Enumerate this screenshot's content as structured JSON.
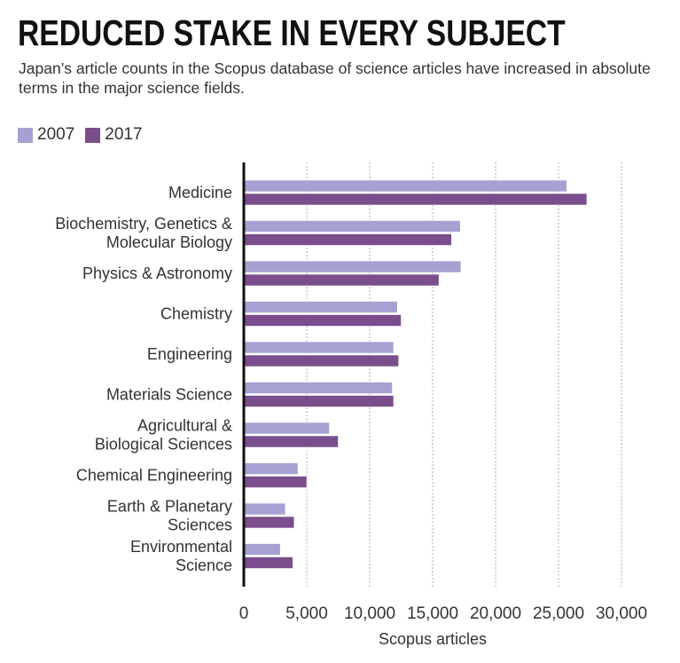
{
  "chart_data": {
    "type": "bar",
    "orientation": "horizontal",
    "title": "REDUCED STAKE IN EVERY SUBJECT",
    "subtitle": "Japan’s article counts in the Scopus database of science articles have increased in absolute terms in the major science fields.",
    "categories": [
      [
        "Medicine"
      ],
      [
        "Biochemistry, Genetics &",
        "Molecular Biology"
      ],
      [
        "Physics & Astronomy"
      ],
      [
        "Chemistry"
      ],
      [
        "Engineering"
      ],
      [
        "Materials Science"
      ],
      [
        "Agricultural &",
        "Biological Sciences"
      ],
      [
        "Chemical Engineering"
      ],
      [
        "Earth & Planetary",
        "Sciences"
      ],
      [
        "Environmental",
        "Science"
      ]
    ],
    "series": [
      {
        "name": "2007",
        "color": "#a5a1d2",
        "values": [
          25650,
          17200,
          17250,
          12200,
          11900,
          11800,
          6800,
          4300,
          3300,
          2900
        ]
      },
      {
        "name": "2017",
        "color": "#7a4d8c",
        "values": [
          27250,
          16500,
          15500,
          12500,
          12300,
          11900,
          7500,
          5000,
          4000,
          3900
        ]
      }
    ],
    "xlabel": "Scopus articles",
    "xlim": [
      0,
      30000
    ],
    "xticks": [
      0,
      5000,
      10000,
      15000,
      20000,
      25000,
      30000
    ],
    "xtick_labels": [
      "0",
      "5,000",
      "10,000",
      "15,000",
      "20,000",
      "25,000",
      "30,000"
    ],
    "grid": "vertical dotted",
    "legend": "top-left"
  }
}
